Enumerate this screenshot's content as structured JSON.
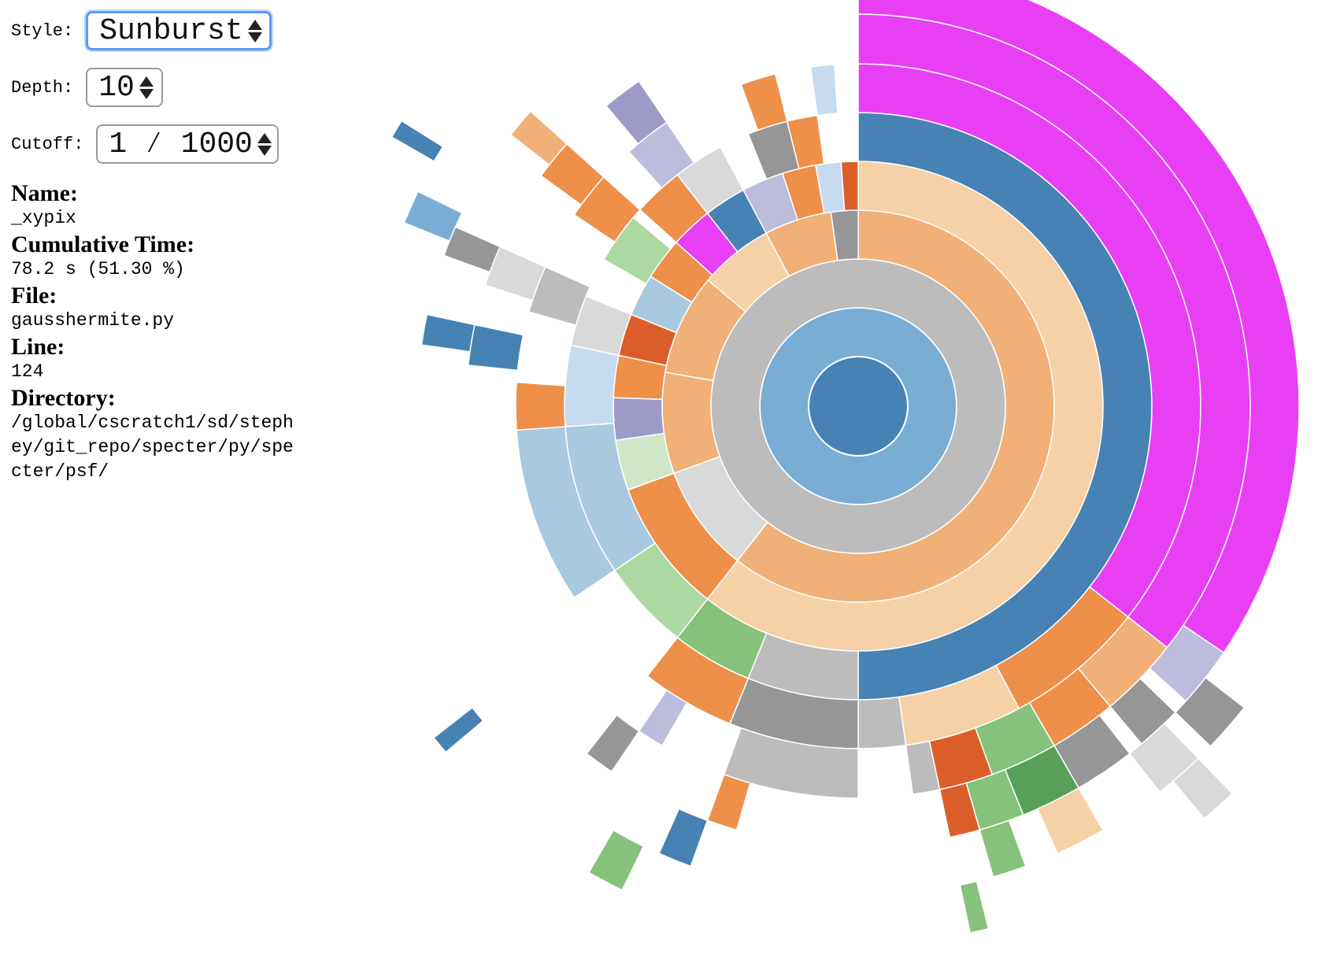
{
  "controls": {
    "style_label": "Style:",
    "style_value": "Sunburst",
    "depth_label": "Depth:",
    "depth_value": "10",
    "cutoff_label": "Cutoff:",
    "cutoff_value": "1 ⁄ 1000"
  },
  "info": {
    "name_label": "Name:",
    "name_value": "_xypix",
    "cumtime_label": "Cumulative Time:",
    "cumtime_value": "78.2 s (51.30 %)",
    "file_label": "File:",
    "file_value": "gausshermite.py",
    "line_label": "Line:",
    "line_value": "124",
    "dir_label": "Directory:",
    "dir_value": "/global/cscratch1/sd/stephey/git_repo/specter/py/specter/psf/"
  },
  "chart_data": {
    "type": "sunburst",
    "colors": {
      "magenta": "#e83ff5",
      "blue": "#4682b4",
      "lightblue": "#7aadd4",
      "paleblue": "#a8c9e0",
      "palestblue": "#c6dbef",
      "peach": "#f6d0a7",
      "orange": "#f0b077",
      "darkorange": "#ee8f4a",
      "redorange": "#db5e2a",
      "gray": "#bcbcbc",
      "darkgray": "#969696",
      "lightgray": "#d9d9d9",
      "green": "#86c27c",
      "darkgreen": "#58a05a",
      "palegreen": "#acd8a1",
      "palestgreen": "#cde7c7",
      "purple": "#9e9ac8",
      "lavender": "#bcbddc",
      "darkpurple": "#6d68aa"
    }
  }
}
